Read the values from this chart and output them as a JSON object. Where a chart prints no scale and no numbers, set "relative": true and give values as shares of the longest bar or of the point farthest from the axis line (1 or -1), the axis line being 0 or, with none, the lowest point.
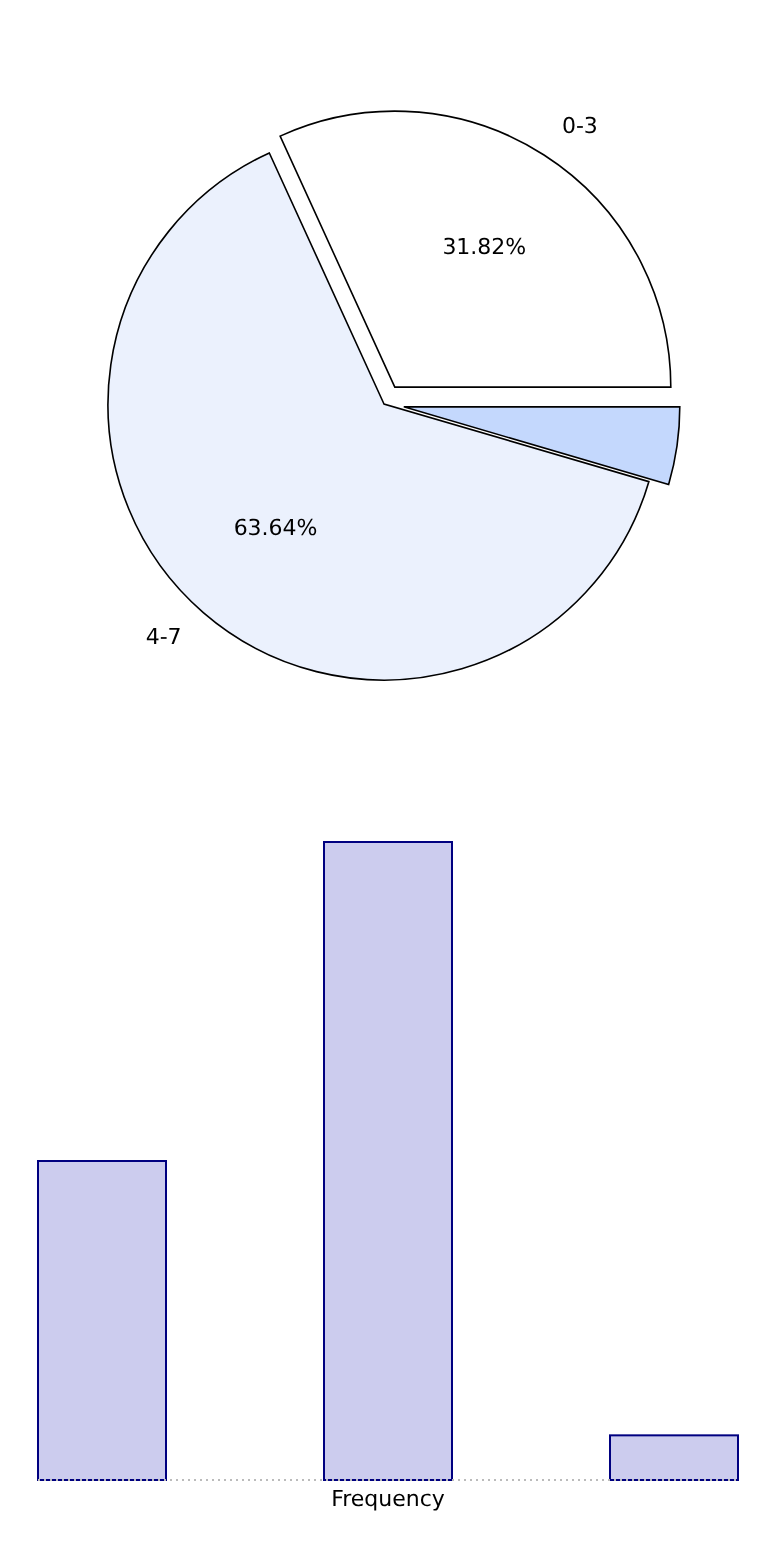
{
  "chart_data": [
    {
      "type": "pie",
      "categories": [
        "0-3",
        "4-7",
        null
      ],
      "values": [
        31.82,
        63.64,
        4.54
      ],
      "colors": [
        "#ffffff",
        "#ebf1fd",
        "#c4d8fd"
      ],
      "value_labels": [
        "31.82%",
        "63.64%",
        null
      ]
    },
    {
      "type": "bar",
      "relative": true,
      "categories": [
        null,
        null,
        null
      ],
      "values": [
        0.5,
        1,
        0.07
      ],
      "color": "#ccccee",
      "xlabel": "Frequency"
    }
  ]
}
